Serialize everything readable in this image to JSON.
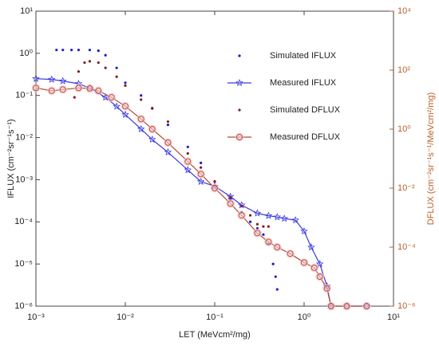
{
  "chart_data": {
    "type": "line",
    "xlabel": "LET (MeVcm²/mg)",
    "ylabel": "IFLUX (cm⁻²sr⁻¹s⁻¹)",
    "y2label": "DFLUX (cm⁻²sr⁻¹s⁻¹/MeVcm²/mg)",
    "xscale": "log",
    "yscale": "log",
    "y2scale": "log",
    "xlim": [
      0.001,
      10
    ],
    "ylim": [
      1e-06,
      10
    ],
    "y2lim": [
      1e-06,
      10000
    ],
    "xticks": [
      {
        "value": 0.001,
        "label": "10⁻³"
      },
      {
        "value": 0.01,
        "label": "10⁻²"
      },
      {
        "value": 0.1,
        "label": "10⁻¹"
      },
      {
        "value": 1,
        "label": "10⁰"
      },
      {
        "value": 10,
        "label": "10¹"
      }
    ],
    "yticks": [
      {
        "value": 1e-06,
        "label": "10⁻⁶"
      },
      {
        "value": 1e-05,
        "label": "10⁻⁵"
      },
      {
        "value": 0.0001,
        "label": "10⁻⁴"
      },
      {
        "value": 0.001,
        "label": "10⁻³"
      },
      {
        "value": 0.01,
        "label": "10⁻²"
      },
      {
        "value": 0.1,
        "label": "10⁻¹"
      },
      {
        "value": 1,
        "label": "10⁰"
      },
      {
        "value": 10,
        "label": "10¹"
      }
    ],
    "y2ticks": [
      {
        "value": 1e-06,
        "label": "10⁻⁶"
      },
      {
        "value": 0.0001,
        "label": "10⁻⁴"
      },
      {
        "value": 0.01,
        "label": "10⁻²"
      },
      {
        "value": 1,
        "label": "10⁰"
      },
      {
        "value": 100,
        "label": "10²"
      },
      {
        "value": 10000,
        "label": "10⁴"
      }
    ],
    "y2color": "#b8602a",
    "series": [
      {
        "name": "Simulated IFLUX",
        "color": "#1c1cc8",
        "marker": "dot",
        "x": [
          0.0017,
          0.002,
          0.0025,
          0.003,
          0.004,
          0.005,
          0.006,
          0.008,
          0.01,
          0.015,
          0.02,
          0.03,
          0.05,
          0.07,
          0.1,
          0.15,
          0.2,
          0.25,
          0.3,
          0.35,
          0.4,
          0.45,
          0.48,
          0.5
        ],
        "values": [
          1.2,
          1.2,
          1.2,
          1.2,
          1.2,
          1.15,
          0.9,
          0.45,
          0.2,
          0.1,
          0.05,
          0.02,
          0.006,
          0.0025,
          0.0009,
          0.00035,
          0.00017,
          0.0001,
          7e-05,
          5e-05,
          3e-05,
          1e-05,
          5e-06,
          2.5e-06
        ]
      },
      {
        "name": "Measured IFLUX",
        "color": "#3a3ae0",
        "marker": "star",
        "x": [
          0.001,
          0.0015,
          0.002,
          0.003,
          0.004,
          0.006,
          0.008,
          0.01,
          0.015,
          0.02,
          0.03,
          0.05,
          0.07,
          0.1,
          0.15,
          0.2,
          0.3,
          0.4,
          0.5,
          0.6,
          0.8,
          1.0,
          1.2,
          1.5,
          1.8,
          2.0,
          3,
          5
        ],
        "values": [
          0.25,
          0.24,
          0.22,
          0.19,
          0.15,
          0.09,
          0.055,
          0.035,
          0.016,
          0.009,
          0.0045,
          0.0017,
          0.0009,
          0.0007,
          0.0004,
          0.00025,
          0.00016,
          0.00014,
          0.00013,
          0.00012,
          0.00011,
          6e-05,
          2.5e-05,
          1e-05,
          3e-06,
          1e-06,
          1e-06,
          1e-06
        ]
      },
      {
        "name": "Simulated DFLUX",
        "color": "#8b1a1a",
        "marker": "dot",
        "axis": "y2",
        "x": [
          0.0027,
          0.003,
          0.0035,
          0.004,
          0.005,
          0.006,
          0.008,
          0.01,
          0.015,
          0.02,
          0.03,
          0.05,
          0.07,
          0.1,
          0.15,
          0.2,
          0.25,
          0.3,
          0.35,
          0.4
        ],
        "values": [
          12,
          90,
          180,
          200,
          180,
          120,
          60,
          30,
          10,
          5,
          1.8,
          0.15,
          0.05,
          0.017,
          0.005,
          0.0025,
          0.0012,
          0.0006,
          0.0005,
          0.0005
        ]
      },
      {
        "name": "Measured DFLUX",
        "color": "#b04a30",
        "marker": "circle",
        "axis": "y2",
        "x": [
          0.001,
          0.0015,
          0.002,
          0.003,
          0.004,
          0.005,
          0.007,
          0.01,
          0.015,
          0.02,
          0.03,
          0.05,
          0.07,
          0.1,
          0.15,
          0.2,
          0.3,
          0.4,
          0.5,
          0.7,
          1.0,
          1.3,
          1.5,
          1.8,
          2.0,
          3,
          5
        ],
        "values": [
          25,
          20,
          22,
          25,
          24,
          20,
          12,
          6,
          2.2,
          1,
          0.35,
          0.08,
          0.03,
          0.01,
          0.003,
          0.0012,
          0.0003,
          0.00015,
          0.0001,
          6e-05,
          3e-05,
          2e-05,
          1e-05,
          4e-06,
          1e-06,
          1e-06,
          1e-06
        ]
      }
    ]
  }
}
